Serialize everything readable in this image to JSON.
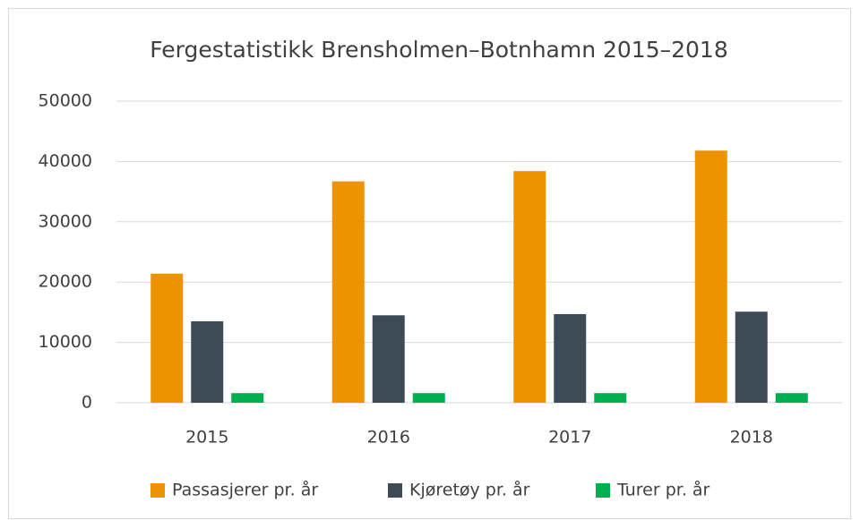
{
  "chart_data": {
    "type": "bar",
    "title": "Fergestatistikk Brensholmen–Botnhamn 2015–2018",
    "categories": [
      "2015",
      "2016",
      "2017",
      "2018"
    ],
    "series": [
      {
        "name": "Passasjerer pr. år",
        "color": "#ed9300",
        "values": [
          21400,
          36700,
          38400,
          41800
        ]
      },
      {
        "name": "Kjøretøy pr. år",
        "color": "#3d4b56",
        "values": [
          13500,
          14500,
          14700,
          15100
        ]
      },
      {
        "name": "Turer pr. år",
        "color": "#00b050",
        "values": [
          1600,
          1600,
          1600,
          1600
        ]
      }
    ],
    "ylim": [
      0,
      50000
    ],
    "yticks": [
      0,
      10000,
      20000,
      30000,
      40000,
      50000
    ],
    "grid": true,
    "legend": "bottom"
  }
}
